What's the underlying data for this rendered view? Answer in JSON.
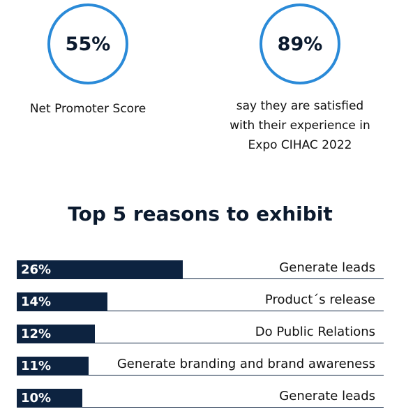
{
  "stats": [
    {
      "value": "55%",
      "caption": "Net Promoter Score"
    },
    {
      "value": "89%",
      "caption_lines": [
        "say they are satisfied",
        "with their experience in",
        "Expo CIHAC 2022"
      ]
    }
  ],
  "colors": {
    "circle_border": "#2a8ad8",
    "bar": "#0d2340",
    "text": "#0b1a2e"
  },
  "chart_data": {
    "type": "bar",
    "orientation": "horizontal",
    "title": "Top 5 reasons to exhibit",
    "categories": [
      "Generate leads",
      "Product´s release",
      "Do Public Relations",
      "Generate branding and brand awareness",
      "Generate leads"
    ],
    "values": [
      26,
      14,
      12,
      11,
      10
    ],
    "labels": [
      "26%",
      "14%",
      "12%",
      "11%",
      "10%"
    ],
    "unit": "%",
    "xlim": [
      0,
      100
    ],
    "grid": false,
    "legend": "none"
  }
}
